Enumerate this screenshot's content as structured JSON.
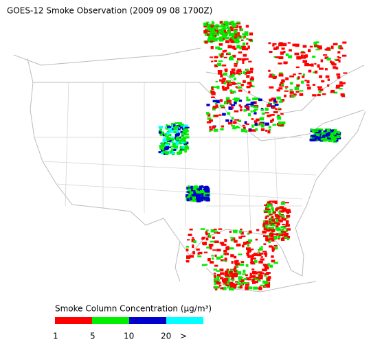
{
  "title": "GOES-12 Smoke Observation (2009 09 08  1700Z)",
  "legend": {
    "title": "Smoke Column Concentration (μg/m³)",
    "colors": [
      "#ff0000",
      "#00ee00",
      "#0000cc",
      "#00ffff"
    ],
    "labels": [
      "1",
      "5",
      "10",
      "20",
      ">"
    ]
  }
}
